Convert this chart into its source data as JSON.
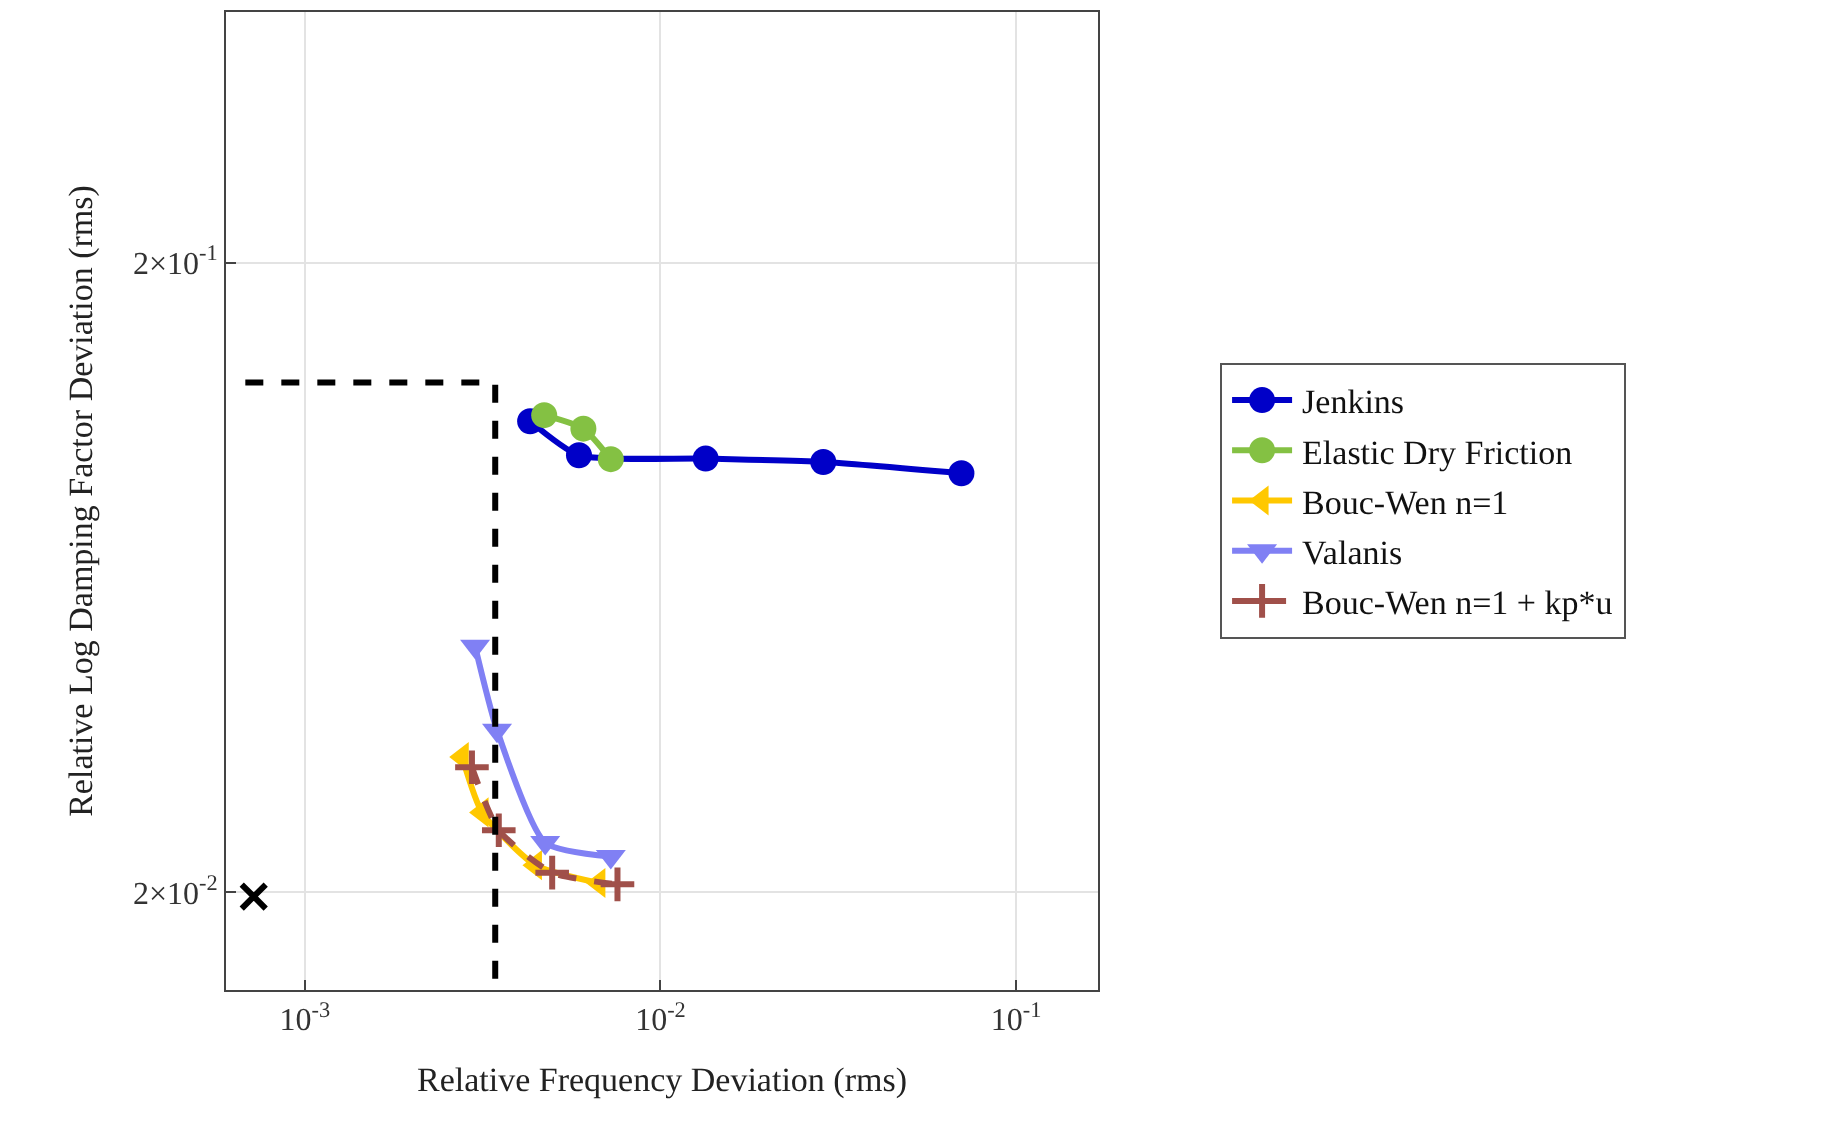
{
  "chart_data": {
    "type": "line",
    "xlabel": "Relative Frequency Deviation (rms)",
    "ylabel": "Relative Log Damping Factor Deviation (rms)",
    "log": "xy",
    "xlim": [
      0.0006,
      0.17
    ],
    "ylim": [
      0.014,
      0.5
    ],
    "xticks": [
      {
        "value": 0.001,
        "label": "10$^{-3}$"
      },
      {
        "value": 0.01,
        "label": "10$^{-2}$"
      },
      {
        "value": 0.1,
        "label": "10$^{-1}$"
      }
    ],
    "yticks": [
      {
        "value": 0.02,
        "label": "2×10$^{-2}$"
      },
      {
        "value": 0.2,
        "label": "2×10$^{-1}$"
      }
    ],
    "grid": true,
    "legend": "right",
    "series": [
      {
        "name": "Jenkins",
        "color": "#0000c8",
        "marker": "circle",
        "line_style": "solid",
        "x": [
          0.0043,
          0.0059,
          0.0134,
          0.0287,
          0.0702
        ],
        "values": [
          0.112,
          0.0989,
          0.0977,
          0.0965,
          0.0926
        ]
      },
      {
        "name": "Elastic Dry Friction",
        "color": "#84c143",
        "marker": "circle",
        "line_style": "solid",
        "x": [
          0.00471,
          0.00607,
          0.00725
        ],
        "values": [
          0.1145,
          0.109,
          0.0975
        ]
      },
      {
        "name": "Bouc-Wen n=1",
        "color": "#ffc800",
        "marker": "triangle-left",
        "line_style": "solid",
        "x": [
          0.00277,
          0.00315,
          0.00445,
          0.00671
        ],
        "values": [
          0.0328,
          0.0268,
          0.0221,
          0.0207
        ]
      },
      {
        "name": "Valanis",
        "color": "#8080f4",
        "marker": "triangle-down",
        "line_style": "solid",
        "x": [
          0.00301,
          0.00347,
          0.00474,
          0.00725
        ],
        "values": [
          0.0492,
          0.0362,
          0.024,
          0.0228
        ]
      },
      {
        "name": "Bouc-Wen n=1 + kp*u",
        "color": "#a0504a",
        "marker": "cross",
        "line_style": "dashed",
        "x": [
          0.00295,
          0.00351,
          0.00496,
          0.00757
        ],
        "values": [
          0.0316,
          0.0251,
          0.0215,
          0.0206
        ]
      },
      {
        "color": "#000000",
        "type": "scatter",
        "marker": "x",
        "x": [
          0.000718
        ],
        "values": [
          0.0197
        ]
      },
      {
        "color": "#000000",
        "marker": "none",
        "line_style": "dashed",
        "x": [
          0.00068,
          0.00343,
          0.00343
        ],
        "values": [
          0.129,
          0.129,
          0.014
        ]
      }
    ]
  }
}
